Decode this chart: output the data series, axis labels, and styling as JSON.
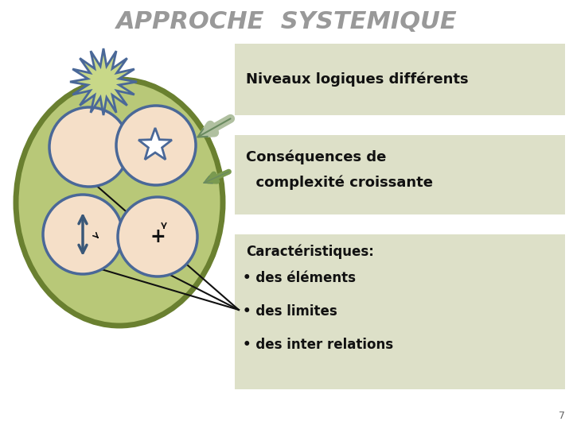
{
  "title": "APPROCHE  SYSTEMIQUE",
  "title_color": "#999999",
  "title_fontsize": 22,
  "bg_color": "#ffffff",
  "box_bg": "#dde0c8",
  "box1_text": "Niveaux logiques différents",
  "box2_line1": "Conséquences de",
  "box2_line2": "  complexité croissante",
  "box3_title": "Caractéristiques:",
  "box3_bullets": [
    "des éléments",
    "des limites",
    "des inter relations"
  ],
  "page_num": "7",
  "outer_fill": "#b8c878",
  "outer_edge": "#6a8030",
  "inner_fill": "#f5dfc8",
  "inner_edge": "#4a6898",
  "star_fill": "#c8d888",
  "star_edge": "#4a6898",
  "arrow_color": "#3a5878",
  "callout_color": "#111111",
  "ext_arrow_fill": "#b0c0a0",
  "ext_arrow_edge": "#6a8a60"
}
